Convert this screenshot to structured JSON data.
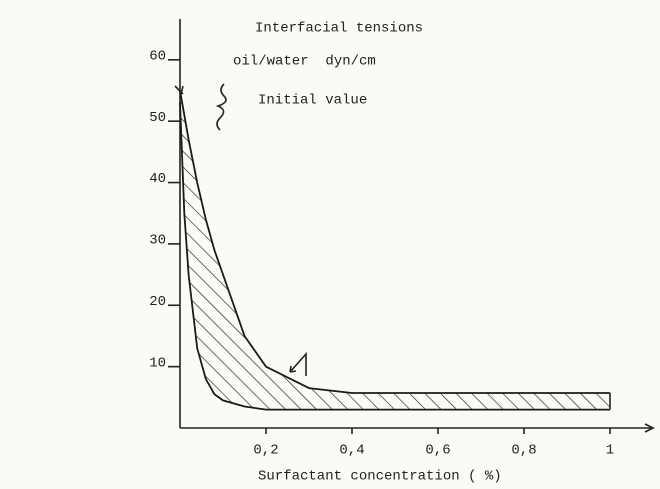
{
  "chart_data": {
    "type": "line",
    "title_lines": [
      "Interfacial tensions",
      "oil/water  dyn/cm"
    ],
    "annotation": "Initial value",
    "x_label": "Surfactant concentration ( %)",
    "x": [
      0,
      0.01,
      0.02,
      0.04,
      0.06,
      0.08,
      0.1,
      0.15,
      0.2,
      0.3,
      0.4,
      0.6,
      0.8,
      1
    ],
    "series": [
      {
        "color": "#1a1a1a",
        "values": [
          55,
          51,
          47,
          40,
          34,
          29,
          25,
          15,
          10,
          6.5,
          5.7,
          5.7,
          5.7,
          5.7
        ]
      },
      {
        "color": "#1a1a1a",
        "values": [
          53,
          35,
          25,
          13,
          8,
          5.5,
          4.5,
          3.5,
          3,
          3,
          3,
          3,
          3,
          3
        ]
      }
    ],
    "hatched_band": true,
    "xlim": [
      0,
      1.1
    ],
    "ylim": [
      0,
      66
    ],
    "xticks": [
      {
        "value": 0.2,
        "label": "0,2"
      },
      {
        "value": 0.4,
        "label": "0,4"
      },
      {
        "value": 0.6,
        "label": "0,6"
      },
      {
        "value": 0.8,
        "label": "0,8"
      },
      1
    ],
    "yticks": [
      10,
      20,
      30,
      40,
      50,
      60
    ]
  }
}
